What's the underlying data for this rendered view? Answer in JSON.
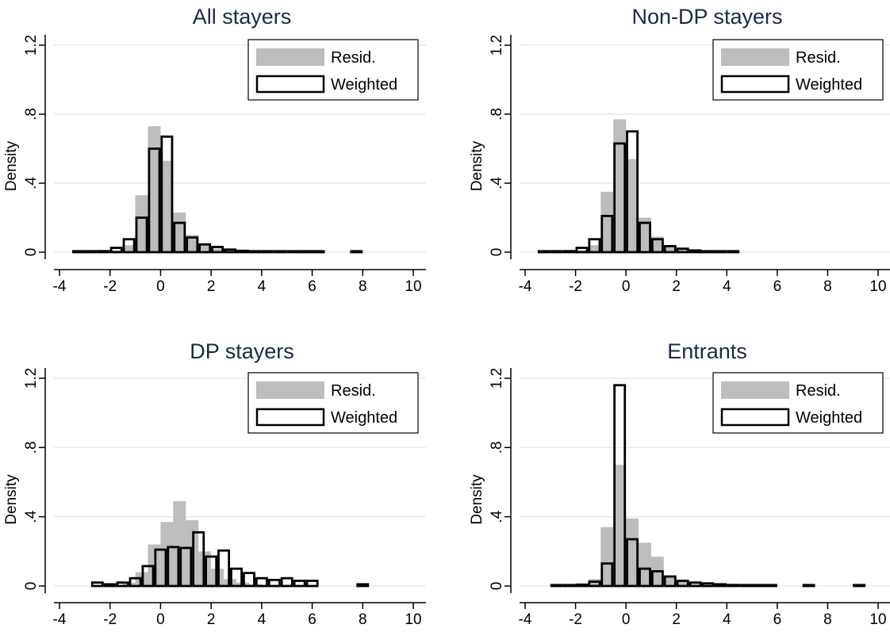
{
  "colors": {
    "resid": "#bdbdbd",
    "weighted_edge": "#000000",
    "grid": "#e3ecec",
    "title": "#1a2a4a"
  },
  "chart_data": [
    {
      "type": "bar",
      "title": "All stayers",
      "ylabel": "Density",
      "xlim": [
        -4,
        10
      ],
      "ylim": [
        0,
        1.2
      ],
      "xticks": [
        -4,
        -2,
        0,
        2,
        4,
        6,
        8,
        10
      ],
      "yticks": [
        0,
        0.4,
        0.8,
        1.2
      ],
      "ytick_labels": [
        "0",
        ".4",
        ".8",
        "1.2"
      ],
      "grid": true,
      "legend_position": "top-right",
      "legend": [
        "Resid.",
        "Weighted"
      ],
      "bin_width": 0.5,
      "series": [
        {
          "name": "Resid.",
          "style": "filled",
          "x": [
            -3.25,
            -2.75,
            -2.25,
            -1.75,
            -1.25,
            -0.75,
            -0.25,
            0.25,
            0.75,
            1.25,
            1.75,
            2.25,
            2.75,
            3.25,
            3.75,
            4.25,
            4.75,
            5.25,
            5.75,
            6.25
          ],
          "values": [
            0.003,
            0.004,
            0.006,
            0.012,
            0.04,
            0.33,
            0.73,
            0.53,
            0.23,
            0.1,
            0.05,
            0.02,
            0.01,
            0.006,
            0.004,
            0.003,
            0.003,
            0.003,
            0.002,
            0.002
          ]
        },
        {
          "name": "Weighted",
          "style": "outline",
          "x": [
            -3.25,
            -2.75,
            -2.25,
            -1.75,
            -1.25,
            -0.75,
            -0.25,
            0.25,
            0.75,
            1.25,
            1.75,
            2.25,
            2.75,
            3.25,
            3.75,
            4.25,
            4.75,
            5.25,
            5.75,
            6.25,
            7.75
          ],
          "values": [
            0.005,
            0.005,
            0.006,
            0.025,
            0.075,
            0.2,
            0.6,
            0.67,
            0.17,
            0.085,
            0.045,
            0.03,
            0.015,
            0.008,
            0.005,
            0.004,
            0.004,
            0.004,
            0.003,
            0.003,
            0.005
          ]
        }
      ]
    },
    {
      "type": "bar",
      "title": "Non-DP stayers",
      "ylabel": "Density",
      "xlim": [
        -4,
        10
      ],
      "ylim": [
        0,
        1.2
      ],
      "xticks": [
        -4,
        -2,
        0,
        2,
        4,
        6,
        8,
        10
      ],
      "yticks": [
        0,
        0.4,
        0.8,
        1.2
      ],
      "ytick_labels": [
        "0",
        ".4",
        ".8",
        "1.2"
      ],
      "grid": true,
      "legend_position": "top-right",
      "legend": [
        "Resid.",
        "Weighted"
      ],
      "bin_width": 0.5,
      "series": [
        {
          "name": "Resid.",
          "style": "filled",
          "x": [
            -3.25,
            -2.75,
            -2.25,
            -1.75,
            -1.25,
            -0.75,
            -0.25,
            0.25,
            0.75,
            1.25,
            1.75,
            2.25,
            2.75,
            3.25,
            3.75,
            4.25
          ],
          "values": [
            0.003,
            0.004,
            0.006,
            0.012,
            0.04,
            0.35,
            0.77,
            0.54,
            0.2,
            0.09,
            0.04,
            0.015,
            0.008,
            0.004,
            0.003,
            0.003
          ]
        },
        {
          "name": "Weighted",
          "style": "outline",
          "x": [
            -3.25,
            -2.75,
            -2.25,
            -1.75,
            -1.25,
            -0.75,
            -0.25,
            0.25,
            0.75,
            1.25,
            1.75,
            2.25,
            2.75,
            3.25,
            3.75,
            4.25
          ],
          "values": [
            0.005,
            0.005,
            0.006,
            0.025,
            0.075,
            0.21,
            0.63,
            0.7,
            0.17,
            0.075,
            0.035,
            0.02,
            0.01,
            0.005,
            0.004,
            0.004
          ]
        }
      ]
    },
    {
      "type": "bar",
      "title": "DP stayers",
      "ylabel": "Density",
      "xlim": [
        -4,
        10
      ],
      "ylim": [
        0,
        1.2
      ],
      "xticks": [
        -4,
        -2,
        0,
        2,
        4,
        6,
        8,
        10
      ],
      "yticks": [
        0,
        0.4,
        0.8,
        1.2
      ],
      "ytick_labels": [
        "0",
        ".4",
        ".8",
        "1.2"
      ],
      "grid": true,
      "legend_position": "top-right",
      "legend": [
        "Resid.",
        "Weighted"
      ],
      "bin_width": 0.5,
      "series": [
        {
          "name": "Resid.",
          "style": "filled",
          "x": [
            -1.25,
            -0.75,
            -0.25,
            0.25,
            0.75,
            1.25,
            1.75,
            2.25,
            2.75,
            3.25,
            3.75
          ],
          "values": [
            0.02,
            0.08,
            0.24,
            0.37,
            0.49,
            0.38,
            0.2,
            0.1,
            0.04,
            0.02,
            0.01
          ]
        },
        {
          "name": "Weighted",
          "style": "outline",
          "x": [
            -2.5,
            -2.0,
            -1.5,
            -1.0,
            -0.5,
            0.0,
            0.5,
            1.0,
            1.5,
            2.0,
            2.5,
            3.0,
            3.5,
            4.0,
            4.5,
            5.0,
            5.5,
            6.0,
            8.0
          ],
          "values": [
            0.02,
            0.01,
            0.02,
            0.045,
            0.115,
            0.21,
            0.225,
            0.22,
            0.31,
            0.17,
            0.205,
            0.1,
            0.075,
            0.045,
            0.035,
            0.045,
            0.03,
            0.03,
            0.01
          ]
        }
      ]
    },
    {
      "type": "bar",
      "title": "Entrants",
      "ylabel": "Density",
      "xlim": [
        -4,
        10
      ],
      "ylim": [
        0,
        1.2
      ],
      "xticks": [
        -4,
        -2,
        0,
        2,
        4,
        6,
        8,
        10
      ],
      "yticks": [
        0,
        0.4,
        0.8,
        1.2
      ],
      "ytick_labels": [
        "0",
        ".4",
        ".8",
        "1.2"
      ],
      "grid": true,
      "legend_position": "top-right",
      "legend": [
        "Resid.",
        "Weighted"
      ],
      "bin_width": 0.5,
      "series": [
        {
          "name": "Resid.",
          "style": "filled",
          "x": [
            -2.75,
            -2.25,
            -1.75,
            -1.25,
            -0.75,
            -0.25,
            0.25,
            0.75,
            1.25,
            1.75,
            2.25,
            2.75,
            3.25,
            3.75,
            4.25
          ],
          "values": [
            0.003,
            0.005,
            0.01,
            0.04,
            0.34,
            0.7,
            0.39,
            0.25,
            0.17,
            0.06,
            0.025,
            0.012,
            0.006,
            0.004,
            0.003
          ]
        },
        {
          "name": "Weighted",
          "style": "outline",
          "x": [
            -2.75,
            -2.25,
            -1.75,
            -1.25,
            -0.75,
            -0.25,
            0.25,
            0.75,
            1.25,
            1.75,
            2.25,
            2.75,
            3.25,
            3.75,
            4.25,
            4.75,
            5.25,
            5.75,
            7.25,
            9.25
          ],
          "values": [
            0.004,
            0.004,
            0.008,
            0.025,
            0.13,
            1.16,
            0.27,
            0.1,
            0.085,
            0.055,
            0.03,
            0.02,
            0.015,
            0.01,
            0.006,
            0.004,
            0.004,
            0.004,
            0.005,
            0.005
          ]
        }
      ]
    }
  ]
}
